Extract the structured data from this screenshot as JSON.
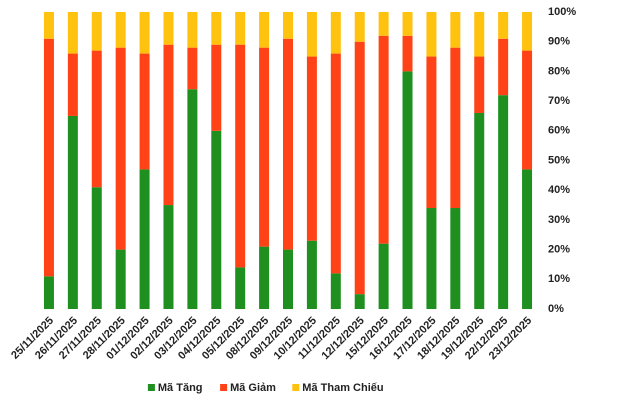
{
  "chart_data": {
    "type": "stacked-bar-100",
    "categories": [
      "25/11/2025",
      "26/11/2025",
      "27/11/2025",
      "28/11/2025",
      "01/12/2025",
      "02/12/2025",
      "03/12/2025",
      "04/12/2025",
      "05/12/2025",
      "08/12/2025",
      "09/12/2025",
      "10/12/2025",
      "11/12/2025",
      "12/12/2025",
      "15/12/2025",
      "16/12/2025",
      "17/12/2025",
      "18/12/2025",
      "19/12/2025",
      "22/12/2025",
      "23/12/2025"
    ],
    "series": [
      {
        "name": "Mã Tăng",
        "color": "#1f8f1f",
        "values": [
          11,
          65,
          41,
          20,
          47,
          35,
          74,
          60,
          14,
          21,
          20,
          23,
          12,
          5,
          22,
          80,
          34,
          34,
          66,
          72,
          47
        ]
      },
      {
        "name": "Mã Giảm",
        "color": "#ff4316",
        "values": [
          80,
          21,
          46,
          68,
          39,
          54,
          14,
          29,
          75,
          67,
          71,
          62,
          74,
          85,
          70,
          12,
          51,
          54,
          19,
          19,
          40
        ]
      },
      {
        "name": "Mã Tham Chiếu",
        "color": "#ffc20e",
        "values": [
          9,
          14,
          13,
          12,
          14,
          11,
          12,
          11,
          11,
          12,
          9,
          15,
          14,
          10,
          8,
          8,
          15,
          12,
          15,
          9,
          13
        ]
      }
    ],
    "ylim": [
      0,
      100
    ],
    "yticks": [
      {
        "value": 0,
        "label": "0%"
      },
      {
        "value": 10,
        "label": "10%"
      },
      {
        "value": 20,
        "label": "20%"
      },
      {
        "value": 30,
        "label": "30%"
      },
      {
        "value": 40,
        "label": "40%"
      },
      {
        "value": 50,
        "label": "50%"
      },
      {
        "value": 60,
        "label": "60%"
      },
      {
        "value": 70,
        "label": "70%"
      },
      {
        "value": 80,
        "label": "80%"
      },
      {
        "value": 90,
        "label": "90%"
      },
      {
        "value": 100,
        "label": "100%"
      }
    ],
    "grid": false,
    "legend": "bottom"
  }
}
